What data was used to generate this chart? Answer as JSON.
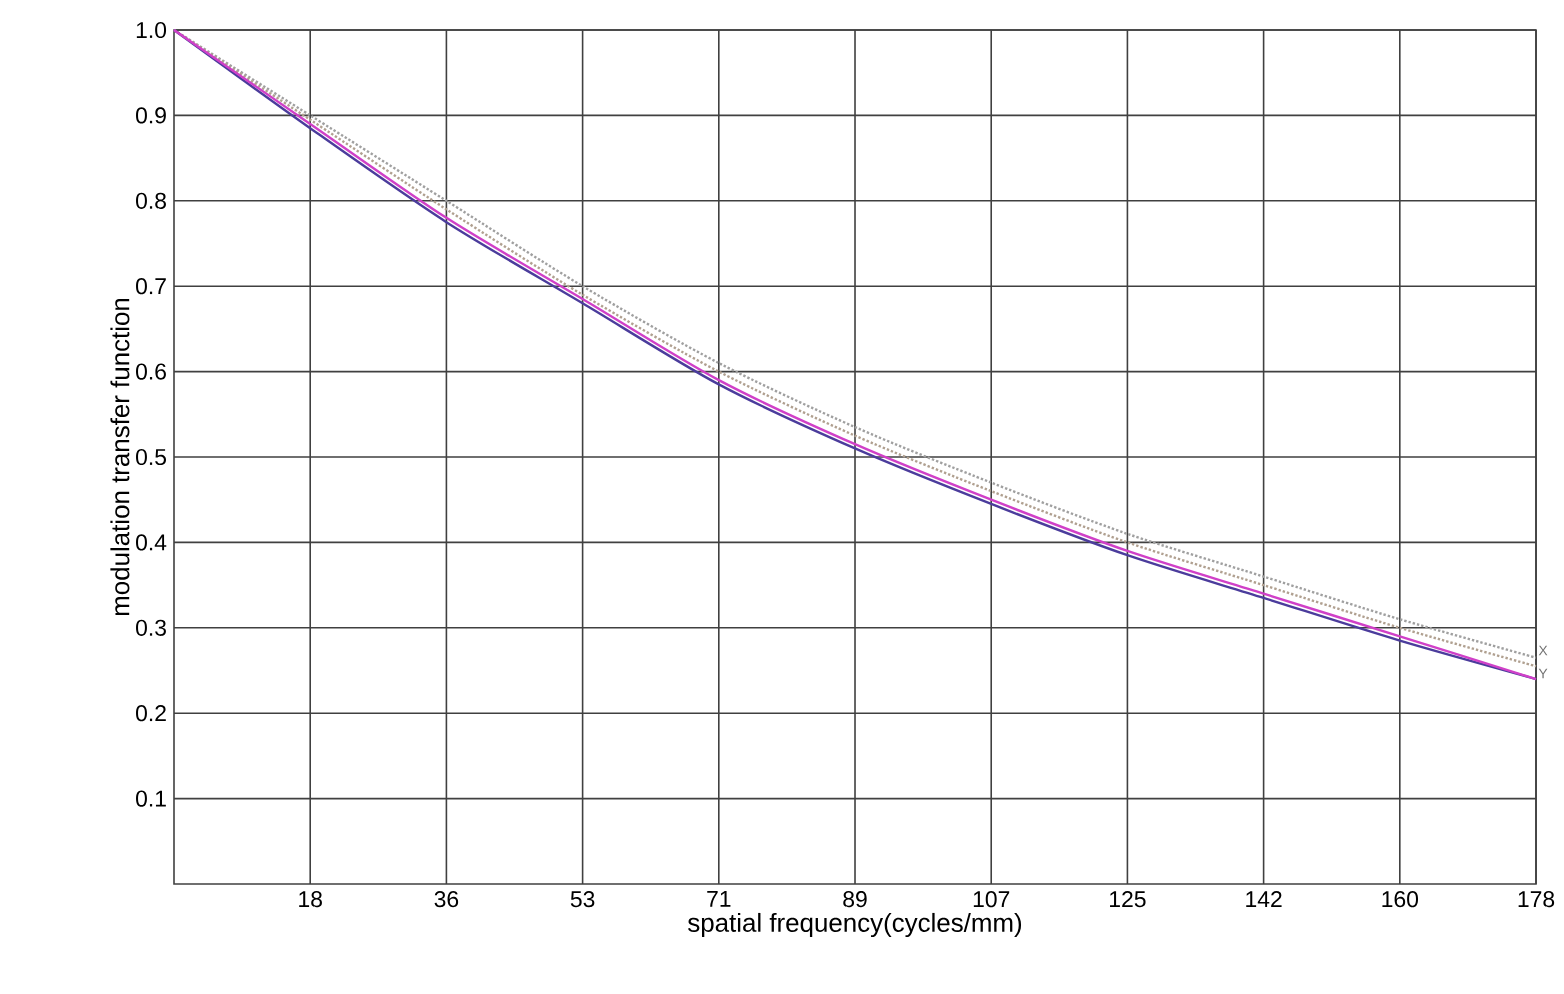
{
  "chart_data": {
    "type": "line",
    "xlabel": "spatial frequency(cycles/mm)",
    "ylabel": "modulation transfer function",
    "x": [
      0,
      17.8,
      35.6,
      53.4,
      71.2,
      89,
      106.8,
      124.6,
      142.4,
      160.2,
      178
    ],
    "series": [
      {
        "color": "#a0a0a0",
        "line_style": "dotted",
        "name": "X",
        "values": [
          1.0,
          0.9,
          0.8,
          0.7,
          0.61,
          0.535,
          0.47,
          0.41,
          0.36,
          0.31,
          0.265
        ]
      },
      {
        "color": "#b0a090",
        "line_style": "dotted",
        "name": "Y",
        "values": [
          1.0,
          0.895,
          0.79,
          0.69,
          0.6,
          0.525,
          0.46,
          0.4,
          0.35,
          0.3,
          0.255
        ]
      },
      {
        "color": "#4b3c9c",
        "line_style": "solid",
        "values": [
          1.0,
          0.885,
          0.775,
          0.68,
          0.585,
          0.51,
          0.445,
          0.385,
          0.335,
          0.285,
          0.24
        ]
      },
      {
        "color": "#d040c8",
        "line_style": "solid",
        "values": [
          1.0,
          0.89,
          0.78,
          0.685,
          0.59,
          0.515,
          0.45,
          0.39,
          0.34,
          0.29,
          0.24
        ]
      }
    ],
    "xlim": [
      0,
      178
    ],
    "ylim": [
      0,
      1.0
    ],
    "xticks": [
      {
        "value": 17.8,
        "label": "18"
      },
      {
        "value": 35.6,
        "label": "36"
      },
      {
        "value": 53.4,
        "label": "53"
      },
      {
        "value": 71.2,
        "label": "71"
      },
      {
        "value": 89,
        "label": "89"
      },
      {
        "value": 106.8,
        "label": "107"
      },
      {
        "value": 124.6,
        "label": "125"
      },
      {
        "value": 142.4,
        "label": "142"
      },
      {
        "value": 160.2,
        "label": "160"
      },
      {
        "value": 178,
        "label": "178"
      }
    ],
    "yticks": [
      0.1,
      0.2,
      0.3,
      0.4,
      0.5,
      0.6,
      0.7,
      0.8,
      0.9,
      {
        "value": 1.0,
        "label": "1.0"
      }
    ],
    "grid": true,
    "legend": false,
    "marker": "none"
  }
}
